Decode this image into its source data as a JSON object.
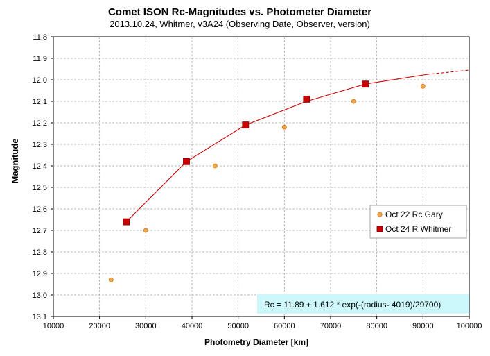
{
  "chart_data": {
    "type": "scatter",
    "title": "Comet ISON Rc-Magnitudes  vs.  Photometer Diameter",
    "subtitle": "2013.10.24,  Whitmer, v3A24 (Observing Date, Observer, version)",
    "xlabel": "Photometry Diameter  [km]",
    "ylabel": "Magnitude",
    "xlim": [
      10000,
      100000
    ],
    "ylim": [
      11.8,
      13.1
    ],
    "y_inverted": true,
    "grid": true,
    "x_ticks": [
      "10000",
      "20000",
      "30000",
      "40000",
      "50000",
      "60000",
      "70000",
      "80000",
      "90000",
      "100000"
    ],
    "y_ticks": [
      "11.8",
      "11.9",
      "12.0",
      "12.1",
      "12.2",
      "12.3",
      "12.4",
      "12.5",
      "12.6",
      "12.7",
      "12.8",
      "12.9",
      "13.0",
      "13.1"
    ],
    "legend_position": "right",
    "series": [
      {
        "name": "Oct 22 Rc Gary",
        "marker": "circle",
        "color": "#f5a54a",
        "x": [
          22500,
          30000,
          45000,
          60000,
          75000,
          90000
        ],
        "y": [
          12.93,
          12.7,
          12.4,
          12.22,
          12.1,
          12.03
        ]
      },
      {
        "name": "Oct 24 R Whitmer",
        "marker": "square",
        "color": "#cc0000",
        "x": [
          25800,
          38800,
          51600,
          64800,
          77500
        ],
        "y": [
          12.66,
          12.38,
          12.21,
          12.09,
          12.02
        ]
      }
    ],
    "fit": {
      "equation_label": "Rc = 11.89 + 1.612 * exp(-(radius- 4019)/29700)",
      "color": "#cc0000",
      "solid_x": [
        25800,
        38800,
        51600,
        64800,
        77500,
        90800
      ],
      "solid_y": [
        12.66,
        12.38,
        12.21,
        12.1,
        12.02,
        11.975
      ],
      "dashed_x": [
        90800,
        100000
      ],
      "dashed_y": [
        11.975,
        11.955
      ]
    }
  }
}
